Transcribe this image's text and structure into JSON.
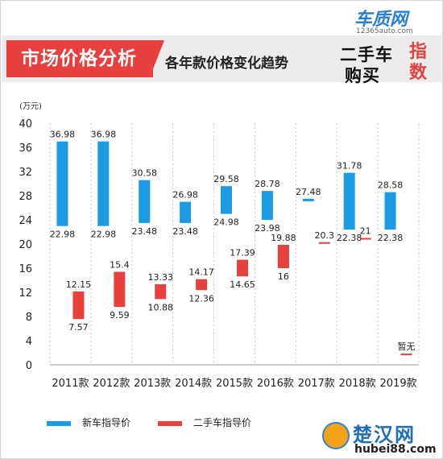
{
  "header": {
    "title": "市场价格分析",
    "subtitle": "各年款价格变化趋势"
  },
  "logo": {
    "brand": "车质网",
    "url": "12365auto.com",
    "line1": "二手车",
    "line2": "购买",
    "red_text": "指数"
  },
  "watermark": {
    "main": "楚汉网",
    "url": "hubei88.com"
  },
  "colors": {
    "new_car": "#1a9be3",
    "used_car": "#e8403d",
    "header_red": "#e8403d"
  },
  "chart_data": {
    "type": "bar",
    "subtype": "floating-range",
    "ylabel": "(万元)",
    "ylim": [
      0,
      40
    ],
    "yticks": [
      0,
      4,
      8,
      12,
      16,
      20,
      24,
      28,
      32,
      36,
      40
    ],
    "categories": [
      "2011款",
      "2012款",
      "2013款",
      "2014款",
      "2015款",
      "2016款",
      "2017款",
      "2018款",
      "2019款"
    ],
    "grid": "vertical-dotted",
    "legend_position": "bottom",
    "series": [
      {
        "name": "新车指导价",
        "color": "#1a9be3",
        "low": [
          22.98,
          22.98,
          23.48,
          23.48,
          24.98,
          23.98,
          27.08,
          22.38,
          22.38
        ],
        "high": [
          36.98,
          36.98,
          30.58,
          26.98,
          29.58,
          28.78,
          27.48,
          31.78,
          28.58
        ],
        "low_labels": [
          "22.98",
          "22.98",
          "23.48",
          "23.48",
          "24.98",
          "23.98",
          null,
          "22.38",
          "22.38"
        ],
        "high_labels": [
          "36.98",
          "36.98",
          "30.58",
          "26.98",
          "29.58",
          "28.78",
          "27.48",
          "31.78",
          "28.58"
        ]
      },
      {
        "name": "二手车指导价",
        "color": "#e8403d",
        "low": [
          7.57,
          9.59,
          10.88,
          12.36,
          14.65,
          16.0,
          20.1,
          20.8,
          1.65
        ],
        "high": [
          12.15,
          15.4,
          13.33,
          14.17,
          17.39,
          19.88,
          20.3,
          21.0,
          1.85
        ],
        "low_labels": [
          "7.57",
          "9.59",
          "10.88",
          "12.36",
          "14.65",
          "16",
          null,
          null,
          null
        ],
        "high_labels": [
          "12.15",
          "15.4",
          "13.33",
          "14.17",
          "17.39",
          "19.88",
          "20.3",
          "21",
          "暂无"
        ]
      }
    ]
  }
}
